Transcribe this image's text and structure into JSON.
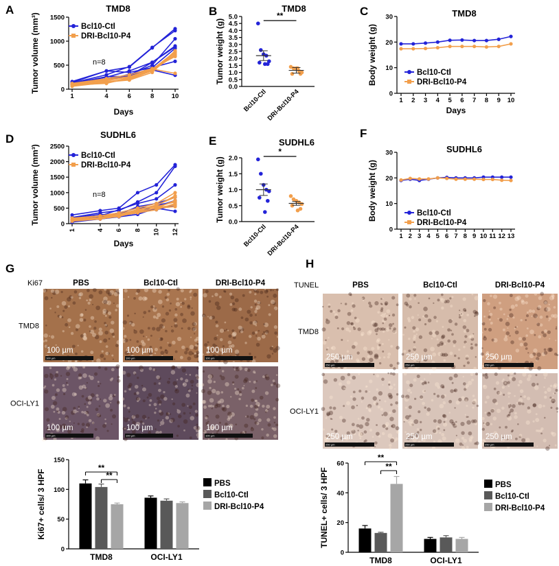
{
  "panels": {
    "A": {
      "letter": "A",
      "title": "TMD8",
      "chart_data": {
        "type": "line",
        "xlabel": "Days",
        "ylabel": "Tumor volume (mm³)",
        "x": [
          1,
          4,
          6,
          8,
          10
        ],
        "ylim": [
          0,
          1500
        ],
        "yticks": [
          "0",
          "500",
          "1000",
          "1500"
        ],
        "legend": [
          "Bcl10-Ctl",
          "DRI-Bcl10-P4"
        ],
        "legend_position": "top-left",
        "annotation": "n=8",
        "series": [
          {
            "name": "Bcl10-Ctl",
            "color": "#2323d8",
            "lines": [
              [
                160,
                380,
                460,
                860,
                1260
              ],
              [
                130,
                300,
                470,
                870,
                1220
              ],
              [
                110,
                250,
                380,
                560,
                880
              ],
              [
                90,
                200,
                300,
                500,
                1050
              ],
              [
                140,
                380,
                350,
                450,
                580
              ],
              [
                110,
                200,
                310,
                400,
                290
              ],
              [
                100,
                220,
                280,
                560,
                900
              ],
              [
                120,
                260,
                270,
                450,
                850
              ]
            ]
          },
          {
            "name": "DRI-Bcl10-P4",
            "color": "#f29f4c",
            "lines": [
              [
                60,
                140,
                230,
                410,
                780
              ],
              [
                90,
                160,
                200,
                390,
                750
              ],
              [
                110,
                180,
                250,
                400,
                700
              ],
              [
                80,
                130,
                220,
                380,
                720
              ],
              [
                100,
                200,
                260,
                420,
                330
              ],
              [
                70,
                150,
                190,
                350,
                800
              ],
              [
                120,
                220,
                300,
                430,
                680
              ],
              [
                90,
                120,
                240,
                390,
                760
              ]
            ]
          }
        ]
      }
    },
    "B": {
      "letter": "B",
      "title": "TMD8",
      "sig": "**",
      "chart_data": {
        "type": "scatter",
        "ylabel": "Tumor weight (g)",
        "categories": [
          "Bcl10-Ctl",
          "DRI-Bcl10-P4"
        ],
        "ylim": [
          0,
          5
        ],
        "yticks": [
          "0.0",
          "0.5",
          "1.0",
          "1.5",
          "2.0",
          "2.5",
          "3.0",
          "3.5",
          "4.0",
          "4.5",
          "5.0"
        ],
        "series": [
          {
            "name": "Bcl10-Ctl",
            "color": "#2323d8",
            "values": [
              4.5,
              2.6,
              2.3,
              2.2,
              1.8,
              1.7,
              1.6,
              1.6
            ],
            "mean": 2.2,
            "sem": 0.35
          },
          {
            "name": "DRI-Bcl10-P4",
            "color": "#f29f4c",
            "values": [
              1.4,
              1.3,
              1.3,
              1.1,
              1.0,
              0.9,
              0.9,
              1.3
            ],
            "mean": 1.15,
            "sem": 0.2
          }
        ]
      }
    },
    "C": {
      "letter": "C",
      "title": "TMD8",
      "chart_data": {
        "type": "line",
        "xlabel": "Days",
        "ylabel": "Body weight (g)",
        "x": [
          1,
          2,
          3,
          4,
          5,
          6,
          7,
          8,
          9,
          10
        ],
        "ylim": [
          0,
          30
        ],
        "yticks": [
          "0",
          "10",
          "20",
          "30"
        ],
        "legend": [
          "Bcl10-Ctl",
          "DRI-Bcl10-P4"
        ],
        "legend_position": "bottom-left",
        "series": [
          {
            "name": "Bcl10-Ctl",
            "color": "#2323d8",
            "values": [
              19.3,
              19.3,
              19.6,
              20.0,
              20.7,
              20.8,
              20.6,
              20.6,
              21.1,
              22.2
            ]
          },
          {
            "name": "DRI-Bcl10-P4",
            "color": "#f29f4c",
            "values": [
              17.4,
              17.4,
              17.5,
              17.8,
              18.3,
              18.3,
              18.3,
              18.1,
              18.3,
              19.3
            ]
          }
        ]
      }
    },
    "D": {
      "letter": "D",
      "title": "SUDHL6",
      "chart_data": {
        "type": "line",
        "xlabel": "Days",
        "ylabel": "Tumor volume (mm³)",
        "x": [
          1,
          4,
          6,
          8,
          10,
          12
        ],
        "ylim": [
          0,
          2500
        ],
        "yticks": [
          "0",
          "500",
          "1000",
          "1500",
          "2000",
          "2500"
        ],
        "legend": [
          "Bcl10-Ctl",
          "DRI-Bcl10-P4"
        ],
        "legend_position": "top-left",
        "annotation": "n=8",
        "series": [
          {
            "name": "Bcl10-Ctl",
            "color": "#2323d8",
            "lines": [
              [
                280,
                420,
                500,
                1000,
                1250,
                1900
              ],
              [
                200,
                350,
                420,
                700,
                1000,
                1850
              ],
              [
                150,
                250,
                450,
                650,
                800,
                1250
              ],
              [
                100,
                200,
                300,
                550,
                650,
                850
              ],
              [
                50,
                150,
                250,
                400,
                450,
                600
              ],
              [
                120,
                220,
                350,
                500,
                550,
                750
              ],
              [
                180,
                300,
                250,
                350,
                600,
                700
              ],
              [
                80,
                150,
                220,
                300,
                500,
                400
              ]
            ]
          },
          {
            "name": "DRI-Bcl10-P4",
            "color": "#f29f4c",
            "lines": [
              [
                150,
                250,
                350,
                500,
                650,
                1000
              ],
              [
                120,
                200,
                300,
                450,
                600,
                850
              ],
              [
                100,
                180,
                250,
                400,
                500,
                750
              ],
              [
                180,
                250,
                300,
                450,
                550,
                700
              ],
              [
                80,
                150,
                250,
                350,
                450,
                650
              ],
              [
                130,
                200,
                280,
                380,
                500,
                550
              ],
              [
                110,
                170,
                260,
                420,
                580,
                900
              ],
              [
                90,
                160,
                230,
                380,
                520,
                600
              ]
            ]
          }
        ]
      }
    },
    "E": {
      "letter": "E",
      "title": "SUDHL6",
      "sig": "*",
      "chart_data": {
        "type": "scatter",
        "ylabel": "Tumor weight (g)",
        "categories": [
          "Bcl10-Ctl",
          "DRI-Bcl10-P4"
        ],
        "ylim": [
          0,
          2
        ],
        "yticks": [
          "0.0",
          "0.5",
          "1.0",
          "1.5",
          "2.0"
        ],
        "series": [
          {
            "name": "Bcl10-Ctl",
            "color": "#2323d8",
            "values": [
              1.95,
              1.5,
              1.15,
              1.0,
              0.95,
              0.75,
              0.65,
              0.3
            ],
            "mean": 1.0,
            "sem": 0.18
          },
          {
            "name": "DRI-Bcl10-P4",
            "color": "#f29f4c",
            "values": [
              0.8,
              0.7,
              0.65,
              0.6,
              0.55,
              0.5,
              0.4,
              0.35
            ],
            "mean": 0.57,
            "sem": 0.06
          }
        ]
      }
    },
    "F": {
      "letter": "F",
      "title": "SUDHL6",
      "chart_data": {
        "type": "line",
        "xlabel": "",
        "ylabel": "Body weight (g)",
        "x": [
          1,
          2,
          3,
          4,
          5,
          6,
          7,
          8,
          9,
          10,
          11,
          12,
          13
        ],
        "ylim": [
          0,
          30
        ],
        "yticks": [
          "0",
          "10",
          "20",
          "30"
        ],
        "legend": [
          "Bcl10-Ctl",
          "DRI-Bcl10-P4"
        ],
        "legend_position": "bottom-left",
        "series": [
          {
            "name": "Bcl10-Ctl",
            "color": "#2323d8",
            "values": [
              19.0,
              19.5,
              19.0,
              19.5,
              20.0,
              20.2,
              20.0,
              20.0,
              20.0,
              20.3,
              20.3,
              20.3,
              20.3
            ]
          },
          {
            "name": "DRI-Bcl10-P4",
            "color": "#f29f4c",
            "values": [
              19.2,
              19.8,
              19.6,
              19.6,
              20.0,
              19.8,
              19.5,
              19.5,
              19.5,
              19.4,
              19.4,
              19.1,
              19.0
            ]
          }
        ]
      }
    },
    "G": {
      "letter": "G",
      "stain": "Ki67",
      "columns": [
        "PBS",
        "Bcl10-Ctl",
        "DRI-Bcl10-P4"
      ],
      "rows": [
        "TMD8",
        "OCI-LY1"
      ],
      "scale_label": "100 µm",
      "scale_small": "100 µm",
      "image_tones": [
        [
          "#a4714b",
          "#a9754f",
          "#9c6a48"
        ],
        [
          "#6c5566",
          "#5e4a5c",
          "#7a6168"
        ]
      ],
      "chart_data": {
        "type": "bar",
        "ylabel": "Ki67+ cells/ 3 HPF",
        "categories": [
          "TMD8",
          "OCI-LY1"
        ],
        "ylim": [
          0,
          150
        ],
        "yticks": [
          "0",
          "50",
          "100",
          "150"
        ],
        "legend": [
          "PBS",
          "Bcl10-Ctl",
          "DRI-Bcl10-P4"
        ],
        "legend_position": "right",
        "series": [
          {
            "name": "PBS",
            "color": "#000000",
            "values": [
              110,
              86
            ],
            "err": [
              6,
              3
            ]
          },
          {
            "name": "Bcl10-Ctl",
            "color": "#595959",
            "values": [
              104,
              81
            ],
            "err": [
              5,
              3
            ]
          },
          {
            "name": "DRI-Bcl10-P4",
            "color": "#a6a6a6",
            "values": [
              75,
              77
            ],
            "err": [
              2,
              2
            ]
          }
        ],
        "sig": [
          "**",
          "**"
        ]
      }
    },
    "H": {
      "letter": "H",
      "stain": "TUNEL",
      "columns": [
        "PBS",
        "Bcl10-Ctl",
        "DRI-Bcl10-P4"
      ],
      "rows": [
        "TMD8",
        "OCI-LY1"
      ],
      "scale_label": "250 µm",
      "scale_small": "250 µm",
      "image_tones": [
        [
          "#d9bfae",
          "#d6bcab",
          "#cf9f80"
        ],
        [
          "#dcc8bd",
          "#d8c4b9",
          "#d3bdb2"
        ]
      ],
      "chart_data": {
        "type": "bar",
        "ylabel": "TUNEL+ cells/ 3 HPF",
        "categories": [
          "TMD8",
          "OCI-LY1"
        ],
        "ylim": [
          0,
          60
        ],
        "yticks": [
          "0",
          "20",
          "40",
          "60"
        ],
        "legend": [
          "PBS",
          "Bcl10-Ctl",
          "DRI-Bcl10-P4"
        ],
        "legend_position": "right",
        "series": [
          {
            "name": "PBS",
            "color": "#000000",
            "values": [
              16,
              9
            ],
            "err": [
              2,
              1
            ]
          },
          {
            "name": "Bcl10-Ctl",
            "color": "#595959",
            "values": [
              13,
              10
            ],
            "err": [
              0.5,
              1.2
            ]
          },
          {
            "name": "DRI-Bcl10-P4",
            "color": "#a6a6a6",
            "values": [
              46,
              9
            ],
            "err": [
              5,
              1
            ]
          }
        ],
        "sig": [
          "**",
          "**"
        ]
      }
    }
  }
}
